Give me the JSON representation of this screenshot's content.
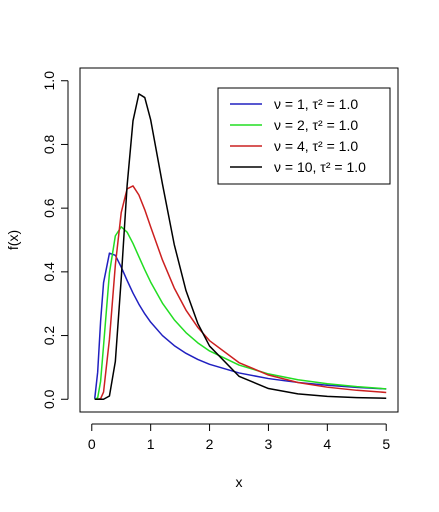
{
  "chart_data": {
    "type": "line",
    "xlabel": "x",
    "ylabel": "f(x)",
    "x": [
      0.05,
      0.1,
      0.15,
      0.2,
      0.3,
      0.4,
      0.5,
      0.6,
      0.7,
      0.8,
      0.9,
      1.0,
      1.2,
      1.4,
      1.6,
      1.8,
      2.0,
      2.5,
      3.0,
      3.5,
      4.0,
      4.5,
      5.0
    ],
    "series": [
      {
        "name": "ν = 1, τ² = 1.0",
        "color": "#2020c0",
        "values": [
          0.0016,
          0.085,
          0.245,
          0.366,
          0.4586,
          0.4518,
          0.4151,
          0.3731,
          0.3334,
          0.2984,
          0.2681,
          0.242,
          0.2,
          0.1685,
          0.1442,
          0.1251,
          0.1098,
          0.0826,
          0.065,
          0.0528,
          0.044,
          0.0374,
          0.0323
        ]
      },
      {
        "name": "ν = 2, τ² = 1.0",
        "color": "#22dd22",
        "values": [
          0,
          0.0045,
          0.0566,
          0.1684,
          0.3963,
          0.513,
          0.5413,
          0.5247,
          0.4892,
          0.4476,
          0.4064,
          0.3679,
          0.3018,
          0.2497,
          0.2091,
          0.1771,
          0.1516,
          0.1073,
          0.0796,
          0.0613,
          0.0487,
          0.0395,
          0.0327
        ]
      },
      {
        "name": "ν = 4, τ² = 1.0",
        "color": "#cc2020",
        "values": [
          0,
          0,
          0.0019,
          0.0227,
          0.1886,
          0.4211,
          0.5861,
          0.6606,
          0.6697,
          0.6413,
          0.5948,
          0.5413,
          0.4373,
          0.3494,
          0.2798,
          0.2258,
          0.1839,
          0.115,
          0.0761,
          0.0527,
          0.0379,
          0.0281,
          0.0214
        ]
      },
      {
        "name": "ν = 10, τ² = 1.0",
        "color": "#000000",
        "values": [
          0,
          0,
          0,
          0,
          0.0103,
          0.1185,
          0.3783,
          0.6707,
          0.8743,
          0.9587,
          0.9472,
          0.8773,
          0.676,
          0.4862,
          0.341,
          0.2381,
          0.167,
          0.0722,
          0.0337,
          0.0169,
          0.0091,
          0.0052,
          0.0031
        ]
      }
    ],
    "xlim": [
      -0.2,
      5.2
    ],
    "ylim": [
      -0.04,
      1.04
    ],
    "xticks": [
      0,
      1,
      2,
      3,
      4,
      5
    ],
    "yticks": [
      {
        "value": 0,
        "label": "0.0"
      },
      {
        "value": 0.2,
        "label": "0.2"
      },
      {
        "value": 0.4,
        "label": "0.4"
      },
      {
        "value": 0.6,
        "label": "0.6"
      },
      {
        "value": 0.8,
        "label": "0.8"
      },
      {
        "value": 1.0,
        "label": "1.0"
      }
    ],
    "legend": "top-right"
  }
}
